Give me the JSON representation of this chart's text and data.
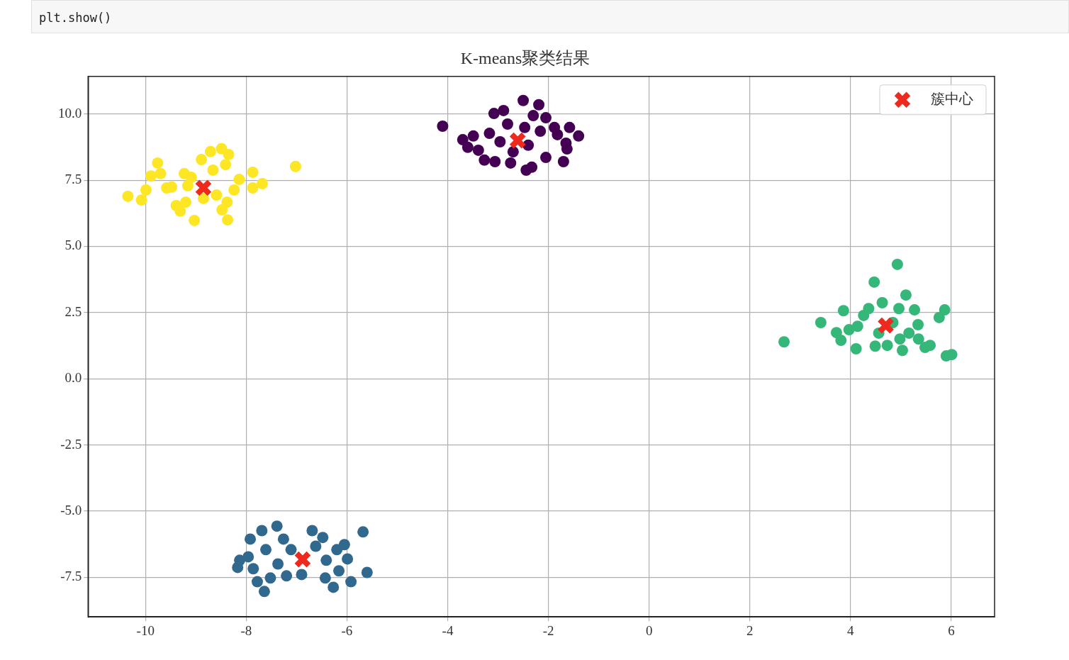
{
  "chart_data": {
    "type": "scatter",
    "title": "K-means聚类结果",
    "annotations": [
      "plt.show()"
    ],
    "xlim": [
      -11.14,
      6.86
    ],
    "xticks": [
      -10,
      -8,
      -6,
      -4,
      -2,
      0,
      2,
      4,
      6
    ],
    "ylim": [
      -9.0,
      11.42
    ],
    "yticks": [
      {
        "value": -7.5,
        "label": "-7.5"
      },
      {
        "value": -5,
        "label": "-5.0"
      },
      {
        "value": -2.5,
        "label": "-2.5"
      },
      {
        "value": 0,
        "label": "0.0"
      },
      {
        "value": 2.5,
        "label": "2.5"
      },
      {
        "value": 5,
        "label": "5.0"
      },
      {
        "value": 7.5,
        "label": "7.5"
      },
      {
        "value": 10,
        "label": "10.0"
      }
    ],
    "grid": true,
    "legend": "top right",
    "series": [
      {
        "color": "#fde725",
        "marker": "circle",
        "x": [
          -10.35,
          -10.08,
          -9.99,
          -9.89,
          -9.76,
          -9.7,
          -9.48,
          -9.39,
          -9.31,
          -9.23,
          -9.16,
          -9.03,
          -8.89,
          -8.85,
          -8.71,
          -8.66,
          -8.49,
          -8.35,
          -8.41,
          -8.48,
          -8.37,
          -8.24,
          -8.14,
          -7.87,
          -7.87,
          -7.68,
          -7.02,
          -9.2,
          -8.59,
          -8.38,
          -9.09,
          -9.58
        ],
        "values": [
          6.89,
          6.75,
          7.13,
          7.66,
          8.15,
          7.75,
          7.24,
          6.54,
          6.33,
          7.75,
          7.29,
          5.98,
          8.28,
          6.81,
          8.58,
          7.88,
          8.69,
          8.47,
          8.09,
          6.38,
          6.0,
          7.13,
          7.53,
          7.8,
          7.21,
          7.37,
          8.02,
          6.67,
          6.94,
          6.67,
          7.61,
          7.21
        ]
      },
      {
        "color": "#440154",
        "marker": "circle",
        "x": [
          -4.1,
          -3.7,
          -3.6,
          -3.49,
          -3.39,
          -3.27,
          -3.17,
          -3.06,
          -3.08,
          -2.89,
          -2.81,
          -2.75,
          -2.7,
          -2.5,
          -2.44,
          -2.33,
          -2.3,
          -2.19,
          -2.16,
          -2.05,
          -2.05,
          -1.88,
          -1.82,
          -1.65,
          -1.63,
          -1.7,
          -1.58,
          -1.4,
          -2.96,
          -2.4,
          -2.47
        ],
        "values": [
          9.54,
          9.03,
          8.74,
          9.17,
          8.63,
          8.26,
          9.27,
          8.2,
          10.02,
          10.13,
          9.62,
          8.15,
          8.57,
          10.51,
          7.88,
          7.99,
          9.94,
          10.35,
          9.35,
          9.86,
          8.36,
          9.49,
          9.22,
          8.9,
          8.68,
          8.2,
          9.49,
          9.17,
          8.95,
          8.82,
          9.49
        ]
      },
      {
        "color": "#35b779",
        "marker": "circle",
        "x": [
          2.68,
          3.41,
          3.72,
          3.81,
          3.86,
          3.97,
          4.11,
          4.26,
          4.36,
          4.47,
          4.49,
          4.63,
          4.73,
          4.84,
          4.93,
          4.96,
          5.03,
          5.1,
          5.16,
          5.27,
          5.34,
          5.35,
          5.48,
          5.58,
          5.69,
          5.87,
          5.9,
          6.01,
          5.76,
          4.14,
          4.56,
          4.98
        ],
        "values": [
          1.39,
          2.12,
          1.74,
          1.45,
          2.57,
          1.85,
          1.13,
          2.39,
          2.65,
          3.65,
          1.23,
          2.87,
          1.26,
          2.12,
          4.32,
          2.65,
          1.07,
          3.16,
          1.72,
          2.6,
          2.04,
          1.5,
          1.18,
          1.26,
          null,
          2.6,
          0.86,
          0.91,
          2.31,
          1.98,
          1.72,
          1.5
        ]
      },
      {
        "color": "#31688e",
        "marker": "circle",
        "x": [
          -8.17,
          -8.13,
          -7.92,
          -7.86,
          -7.78,
          -7.69,
          -7.64,
          -7.61,
          -7.52,
          -7.39,
          -7.37,
          -7.2,
          -7.11,
          -6.9,
          -6.69,
          -6.62,
          -6.48,
          -6.43,
          -6.27,
          -6.16,
          -6.05,
          -5.99,
          -5.92,
          -5.68,
          -5.6,
          -7.26,
          -6.41,
          -6.2,
          -7.96
        ],
        "values": [
          -7.13,
          -6.86,
          -6.06,
          -7.18,
          -7.67,
          -5.74,
          -8.04,
          -6.46,
          -7.53,
          -5.57,
          -7.0,
          -7.45,
          -6.46,
          -7.4,
          -5.74,
          -6.33,
          -6.0,
          -7.53,
          -7.88,
          -7.26,
          -6.27,
          -6.81,
          -7.67,
          -5.79,
          -7.32,
          -6.06,
          -6.86,
          -6.46,
          -6.73
        ]
      },
      {
        "name": "簇中心",
        "color": "#ee2a1e",
        "marker": "cross",
        "x": [
          -8.85,
          -2.61,
          4.7,
          -6.88
        ],
        "values": [
          7.21,
          9.0,
          2.01,
          -6.83
        ]
      }
    ]
  }
}
